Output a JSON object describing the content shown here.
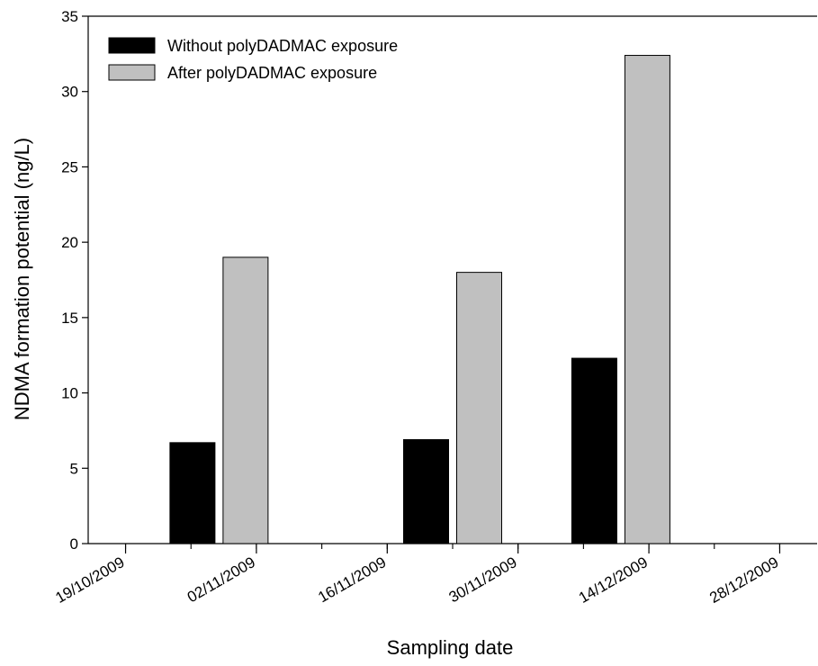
{
  "chart_data": {
    "type": "bar",
    "xlabel": "Sampling date",
    "ylabel": "NDMA formation potential (ng/L)",
    "ylim": [
      0,
      35
    ],
    "yticks": [
      0,
      5,
      10,
      15,
      20,
      25,
      30,
      35
    ],
    "xlim": [
      "15/10/2009",
      "01/01/2010"
    ],
    "xticks": [
      "19/10/2009",
      "02/11/2009",
      "16/11/2009",
      "30/11/2009",
      "14/12/2009",
      "28/12/2009"
    ],
    "categories": [
      "2009-10-29",
      "2009-11-23",
      "2009-12-11"
    ],
    "series": [
      {
        "name": "Without polyDADMAC exposure",
        "color": "#000000",
        "values": [
          6.7,
          6.9,
          12.3
        ]
      },
      {
        "name": "After polyDADMAC exposure",
        "color": "#c0c0c0",
        "values": [
          19.0,
          18.0,
          32.4
        ]
      }
    ],
    "legend_position": "top-left",
    "grid": false
  }
}
